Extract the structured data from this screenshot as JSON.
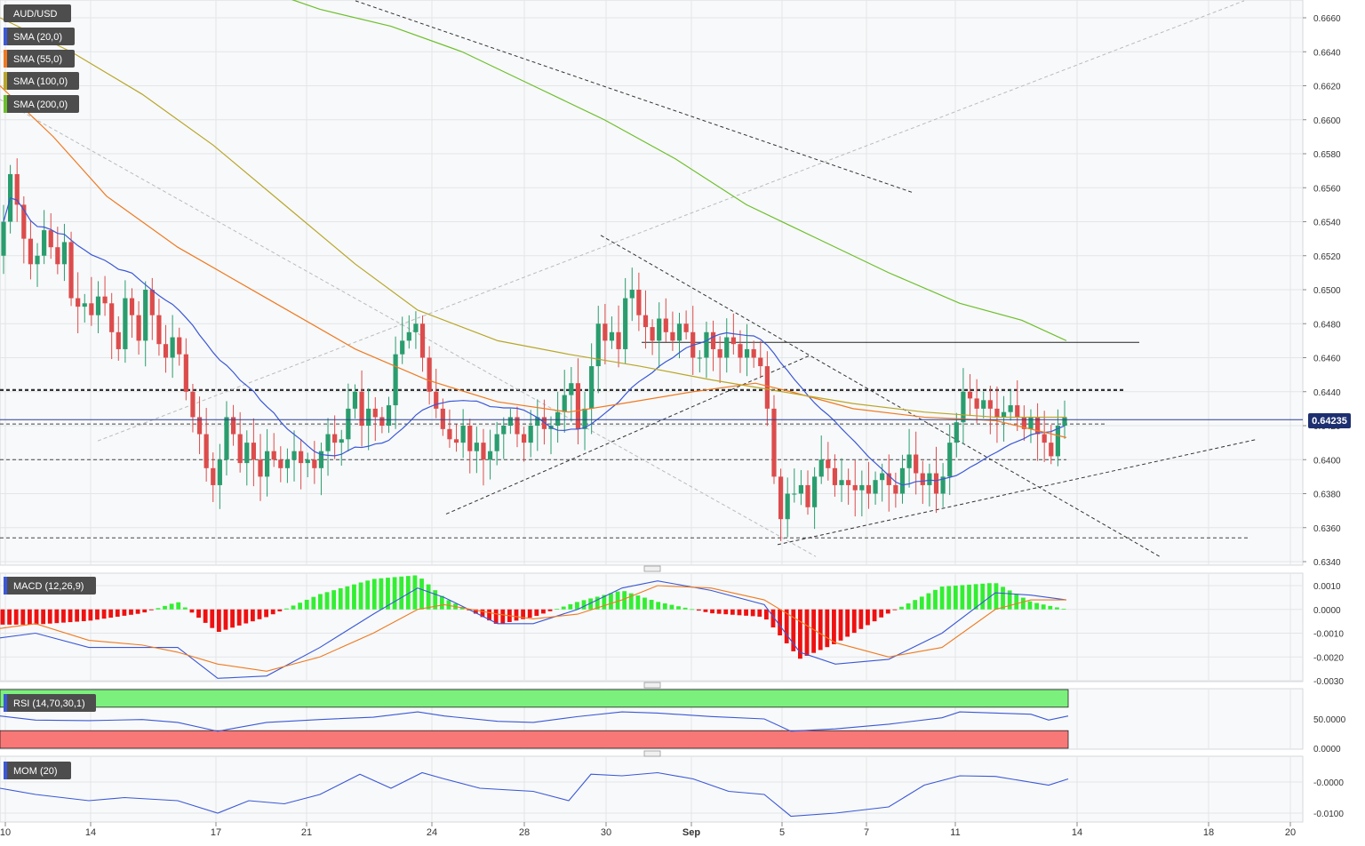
{
  "symbol": "AUD/USD",
  "current_price": "0.64235",
  "colors": {
    "up": "#2a9d6e",
    "down": "#dc4c4c",
    "sma20": "#3a58d6",
    "sma55": "#ee7a22",
    "sma100": "#b8a62a",
    "sma200": "#6cbf2c",
    "price_line": "#2b3f8f",
    "macd_line": "#3a58d6",
    "signal_line": "#ee7a22",
    "hist_pos": "#33ee33",
    "hist_neg": "#ee1111",
    "rsi_over": "#7cf07c",
    "rsi_under": "#f87878",
    "rsi_line": "#3a58d6",
    "mom_line": "#3a58d6"
  },
  "chart_data": [
    {
      "type": "candlestick",
      "title": "AUD/USD",
      "x_tick_labels": [
        "10",
        "14",
        "17",
        "21",
        "24",
        "28",
        "30",
        "Sep",
        "5",
        "7",
        "11",
        "14",
        "18",
        "20"
      ],
      "ylim": [
        0.634,
        0.667
      ],
      "y_tick_labels": [
        "0.6660",
        "0.6640",
        "0.6620",
        "0.6600",
        "0.6580",
        "0.6560",
        "0.6540",
        "0.6520",
        "0.6500",
        "0.6480",
        "0.6460",
        "0.6440",
        "0.6420",
        "0.6400",
        "0.6380",
        "0.6360",
        "0.6340"
      ],
      "legend": [
        "SMA (20,0)",
        "SMA (55,0)",
        "SMA (100,0)",
        "SMA (200,0)"
      ],
      "horizontal_levels": [
        0.6441,
        0.6421,
        0.64,
        0.6354,
        0.6469
      ],
      "close_levels": [
        0.654,
        0.6568,
        0.655,
        0.653,
        0.6515,
        0.652,
        0.6535,
        0.6525,
        0.6515,
        0.6528,
        0.6495,
        0.649,
        0.6492,
        0.6485,
        0.6496,
        0.6492,
        0.6475,
        0.6465,
        0.6495,
        0.6485,
        0.647,
        0.65,
        0.6485,
        0.6468,
        0.646,
        0.6472,
        0.6462,
        0.644,
        0.6425,
        0.6415,
        0.6395,
        0.6385,
        0.64,
        0.6425,
        0.6415,
        0.6398,
        0.641,
        0.64,
        0.639,
        0.6405,
        0.64,
        0.6395,
        0.64,
        0.6405,
        0.6398,
        0.64,
        0.6395,
        0.6405,
        0.6415,
        0.641,
        0.6412,
        0.643,
        0.644,
        0.642,
        0.643,
        0.6425,
        0.642,
        0.6432,
        0.6462,
        0.647,
        0.6475,
        0.648,
        0.646,
        0.644,
        0.643,
        0.6418,
        0.6412,
        0.641,
        0.642,
        0.6405,
        0.641,
        0.64,
        0.6405,
        0.6415,
        0.642,
        0.6425,
        0.6415,
        0.641,
        0.642,
        0.6425,
        0.6418,
        0.642,
        0.6428,
        0.6438,
        0.6445,
        0.6418,
        0.643,
        0.6455,
        0.648,
        0.647,
        0.6475,
        0.6465,
        0.6495,
        0.65,
        0.6485,
        0.6478,
        0.647,
        0.6483,
        0.6475,
        0.647,
        0.648,
        0.6475,
        0.646,
        0.646,
        0.6475,
        0.6465,
        0.646,
        0.6472,
        0.6468,
        0.646,
        0.6465,
        0.646,
        0.6455,
        0.643,
        0.639,
        0.6365,
        0.638,
        0.638,
        0.6385,
        0.6372,
        0.639,
        0.64,
        0.6395,
        0.6385,
        0.6388,
        0.6385,
        0.6382,
        0.6385,
        0.638,
        0.6388,
        0.6392,
        0.6385,
        0.638,
        0.6395,
        0.6403,
        0.6392,
        0.6385,
        0.6392,
        0.638,
        0.639,
        0.641,
        0.6422,
        0.644,
        0.6436,
        0.643,
        0.6435,
        0.643,
        0.6425,
        0.6428,
        0.6432,
        0.6425,
        0.6418,
        0.6425,
        0.6415,
        0.641,
        0.6402,
        0.642,
        0.6425
      ]
    },
    {
      "type": "line",
      "title": "MACD (12,26,9)",
      "ylim": [
        -0.003,
        0.0012
      ],
      "y_tick_labels": [
        "0.0010",
        "0.0000",
        "-0.0010",
        "-0.0020",
        "-0.0030"
      ]
    },
    {
      "type": "line",
      "title": "RSI (14,70,30,1)",
      "ylim": [
        0,
        100
      ],
      "overbought": 70,
      "oversold": 30,
      "y_tick_labels": [
        "50.0000",
        "0.0000"
      ]
    },
    {
      "type": "line",
      "title": "MOM (20)",
      "ylim": [
        -0.012,
        0.004
      ],
      "y_tick_labels": [
        "-0.0000",
        "-0.0100"
      ]
    }
  ]
}
